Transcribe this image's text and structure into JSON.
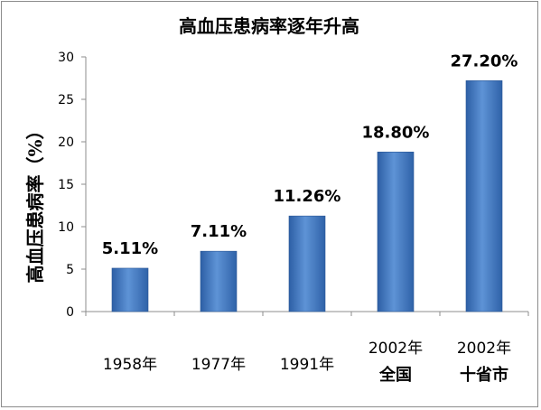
{
  "chart_data": {
    "type": "bar",
    "title": "高血压患病率逐年升高",
    "ylabel": "高血压患病率（%）",
    "xlabel": "",
    "ylim": [
      0,
      30
    ],
    "yticks": [
      "0",
      "5",
      "10",
      "15",
      "20",
      "25",
      "30"
    ],
    "categories": [
      {
        "line1": "1958年",
        "line2": ""
      },
      {
        "line1": "1977年",
        "line2": ""
      },
      {
        "line1": "1991年",
        "line2": ""
      },
      {
        "line1": "2002年",
        "line2": "全国"
      },
      {
        "line1": "2002年",
        "line2": "十省市"
      }
    ],
    "values": [
      5.11,
      7.11,
      11.26,
      18.8,
      27.2
    ],
    "data_labels": [
      "5.11%",
      "7.11%",
      "11.26%",
      "18.80%",
      "27.20%"
    ],
    "grid": false,
    "legend": "none",
    "colors": {
      "bar_light": "#5e93d6",
      "bar_dark": "#2d5fa5",
      "axis": "#8c8c8c"
    }
  }
}
